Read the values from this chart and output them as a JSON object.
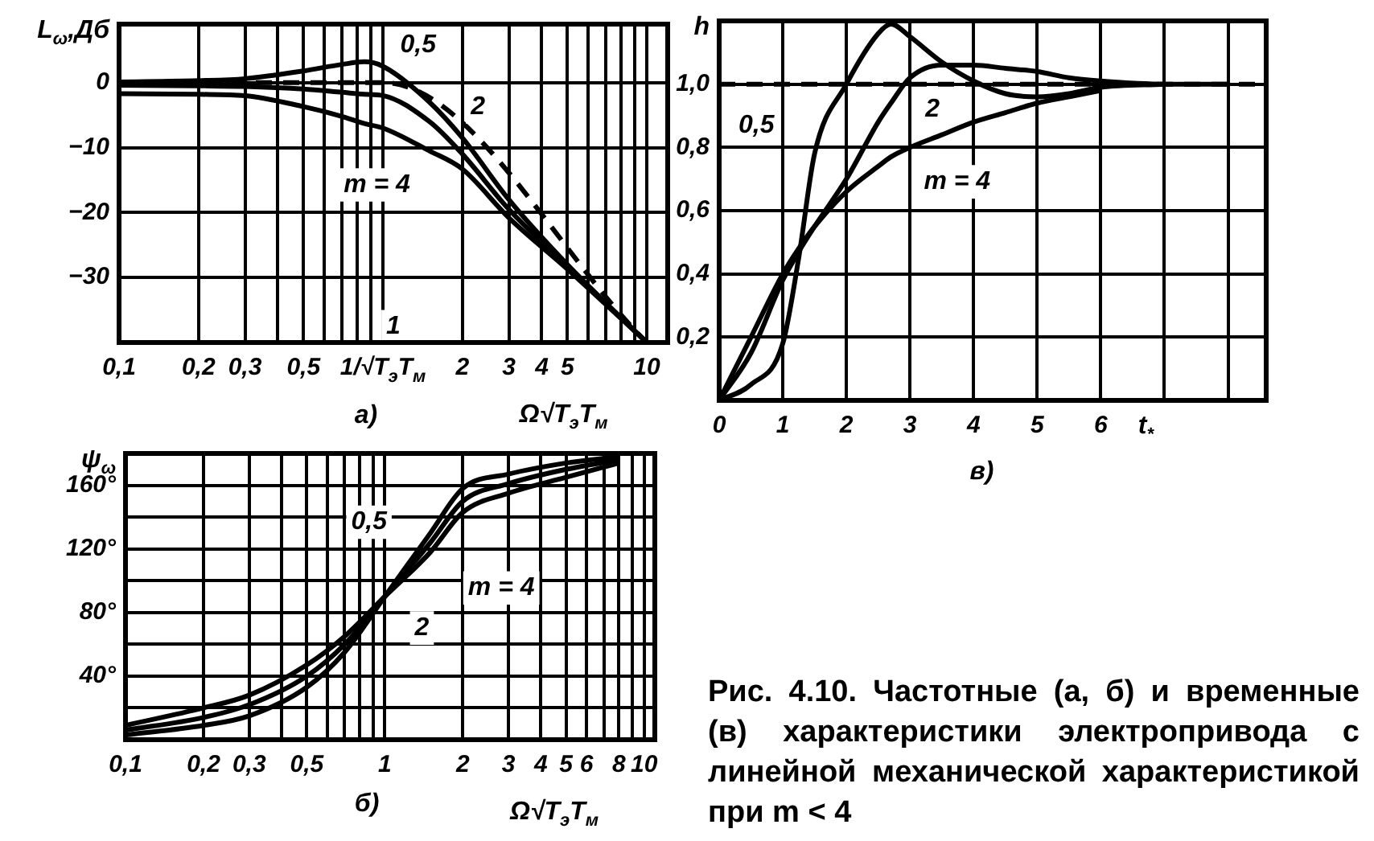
{
  "chart_data": [
    {
      "type": "line",
      "xlabel": "Ω√T$_{э}$T$_{м}$",
      "ylabel": "L$_{ω}$,Дб",
      "log": "x",
      "grid": true,
      "xlim": [
        0.1,
        12
      ],
      "ylim": [
        -40,
        9
      ],
      "xticks": [
        {
          "value": 0.1,
          "label": "0,1"
        },
        {
          "value": 0.2,
          "label": "0,2"
        },
        {
          "value": 0.3,
          "label": "0,3"
        },
        {
          "value": 0.4,
          "label": null
        },
        {
          "value": 0.5,
          "label": "0,5"
        },
        {
          "value": 0.6,
          "label": null
        },
        {
          "value": 0.7,
          "label": null
        },
        {
          "value": 0.8,
          "label": null
        },
        {
          "value": 0.9,
          "label": null
        },
        {
          "value": 1,
          "label": "1/√T$_{э}$T$_{м}$"
        },
        2,
        3,
        4,
        5,
        {
          "value": 6,
          "label": null
        },
        {
          "value": 7,
          "label": null
        },
        {
          "value": 8,
          "label": null
        },
        {
          "value": 9,
          "label": null
        },
        10
      ],
      "yticks": [
        {
          "value": -40,
          "label": null
        },
        {
          "value": -30,
          "label": "−30"
        },
        {
          "value": -20,
          "label": "−20"
        },
        {
          "value": -10,
          "label": "−10"
        },
        0
      ],
      "x": [
        0.1,
        0.2,
        0.3,
        0.5,
        0.7,
        0.85,
        1,
        1.5,
        2,
        3,
        5,
        10
      ],
      "series": [
        {
          "color": "#000000",
          "values": [
            0.1,
            0.3,
            0.6,
            1.8,
            2.8,
            3.2,
            2.5,
            -3,
            -8.5,
            -18,
            -28,
            -40
          ]
        },
        {
          "color": "#000000",
          "values": [
            -0.4,
            -0.5,
            -0.6,
            -1,
            -1.5,
            -1.8,
            -2,
            -6,
            -11,
            -19.5,
            -28.3,
            -40
          ]
        },
        {
          "color": "#000000",
          "values": [
            -1.7,
            -1.8,
            -2,
            -3.7,
            -5.2,
            -6.3,
            -7,
            -10.5,
            -13.3,
            -20.8,
            -28.7,
            -40
          ]
        },
        {
          "color": "#000000",
          "line_style": "dashed",
          "x": [
            0.1,
            1,
            10
          ],
          "values": [
            0,
            0,
            -40
          ]
        }
      ],
      "annotations": [
        "0,5",
        "2",
        "m = 4",
        "1",
        "а)"
      ]
    },
    {
      "type": "line",
      "xlabel": "Ω√T$_{э}$T$_{м}$",
      "ylabel": "ψ$_{ω}$",
      "log": "x",
      "grid": true,
      "xlim": [
        0.1,
        11
      ],
      "ylim": [
        0,
        180
      ],
      "xticks": [
        {
          "value": 0.1,
          "label": "0,1"
        },
        {
          "value": 0.2,
          "label": "0,2"
        },
        {
          "value": 0.3,
          "label": "0,3"
        },
        {
          "value": 0.4,
          "label": null
        },
        {
          "value": 0.5,
          "label": "0,5"
        },
        {
          "value": 0.6,
          "label": null
        },
        {
          "value": 0.7,
          "label": null
        },
        {
          "value": 0.8,
          "label": null
        },
        {
          "value": 0.9,
          "label": null
        },
        1,
        2,
        3,
        4,
        5,
        6,
        {
          "value": 7,
          "label": null
        },
        8,
        {
          "value": 9,
          "label": null
        },
        10
      ],
      "yticks": [
        {
          "value": 20,
          "label": null
        },
        {
          "value": 40,
          "label": "40°"
        },
        {
          "value": 60,
          "label": null
        },
        {
          "value": 80,
          "label": "80°"
        },
        {
          "value": 100,
          "label": null
        },
        {
          "value": 120,
          "label": "120°"
        },
        {
          "value": 140,
          "label": null
        },
        {
          "value": 160,
          "label": "160°"
        }
      ],
      "x": [
        0.1,
        0.2,
        0.3,
        0.5,
        0.7,
        1,
        1.5,
        2,
        3,
        5,
        8
      ],
      "series": [
        {
          "color": "#000000",
          "values": [
            3,
            9,
            15,
            33,
            55,
            90,
            130,
            158,
            167,
            174,
            178
          ]
        },
        {
          "color": "#000000",
          "values": [
            6,
            14,
            22,
            40,
            60,
            90,
            124,
            150,
            161,
            170,
            176
          ]
        },
        {
          "color": "#000000",
          "values": [
            9,
            20,
            28,
            47,
            65,
            90,
            118,
            143,
            155,
            165,
            174
          ]
        }
      ],
      "annotations": [
        "0,5",
        "2",
        "m = 4",
        "б)"
      ]
    },
    {
      "type": "line",
      "xlabel": "t$_{*}$",
      "ylabel": "h",
      "grid": true,
      "xlim": [
        0,
        8.6
      ],
      "ylim": [
        0,
        1.2
      ],
      "xticks": [
        0,
        1,
        2,
        3,
        4,
        5,
        6,
        {
          "value": 7,
          "label": null
        },
        {
          "value": 8,
          "label": null
        }
      ],
      "yticks": [
        {
          "value": 0.2,
          "label": "0,2"
        },
        {
          "value": 0.4,
          "label": "0,4"
        },
        {
          "value": 0.6,
          "label": "0,6"
        },
        {
          "value": 0.8,
          "label": "0,8"
        },
        {
          "value": 1,
          "label": "1,0"
        }
      ],
      "x": [
        0,
        0.5,
        1,
        1.25,
        1.5,
        2,
        2.5,
        2.7,
        3,
        3.5,
        4,
        4.5,
        5,
        5.5,
        6,
        7,
        8
      ],
      "series": [
        {
          "color": "#000000",
          "values": [
            0,
            0.05,
            0.18,
            0.45,
            0.78,
            1,
            1.16,
            1.19,
            1.15,
            1.07,
            1.01,
            0.97,
            0.96,
            0.97,
            0.99,
            1,
            null
          ]
        },
        {
          "color": "#000000",
          "values": [
            0,
            0.15,
            0.38,
            0.47,
            0.55,
            0.7,
            0.88,
            0.94,
            1.02,
            1.06,
            1.06,
            1.05,
            1.04,
            1.02,
            1.01,
            1,
            1
          ]
        },
        {
          "color": "#000000",
          "values": [
            0,
            0.2,
            0.4,
            0.48,
            0.55,
            0.66,
            0.74,
            0.77,
            0.8,
            0.84,
            0.88,
            0.91,
            0.94,
            0.96,
            0.98,
            null,
            null
          ]
        }
      ],
      "ref_lines": [
        {
          "axis": "y",
          "value": 1,
          "line_style": "dashed",
          "color": "#000000"
        }
      ],
      "annotations": [
        "0,5",
        "2",
        "m = 4",
        "в)"
      ]
    },
    {
      "type": "other",
      "annotations": [
        "Рис. 4.10. Частотные (а, б) и временные (в) характеристики электропривода с линейной механической характеристикой при m < 4"
      ]
    }
  ]
}
